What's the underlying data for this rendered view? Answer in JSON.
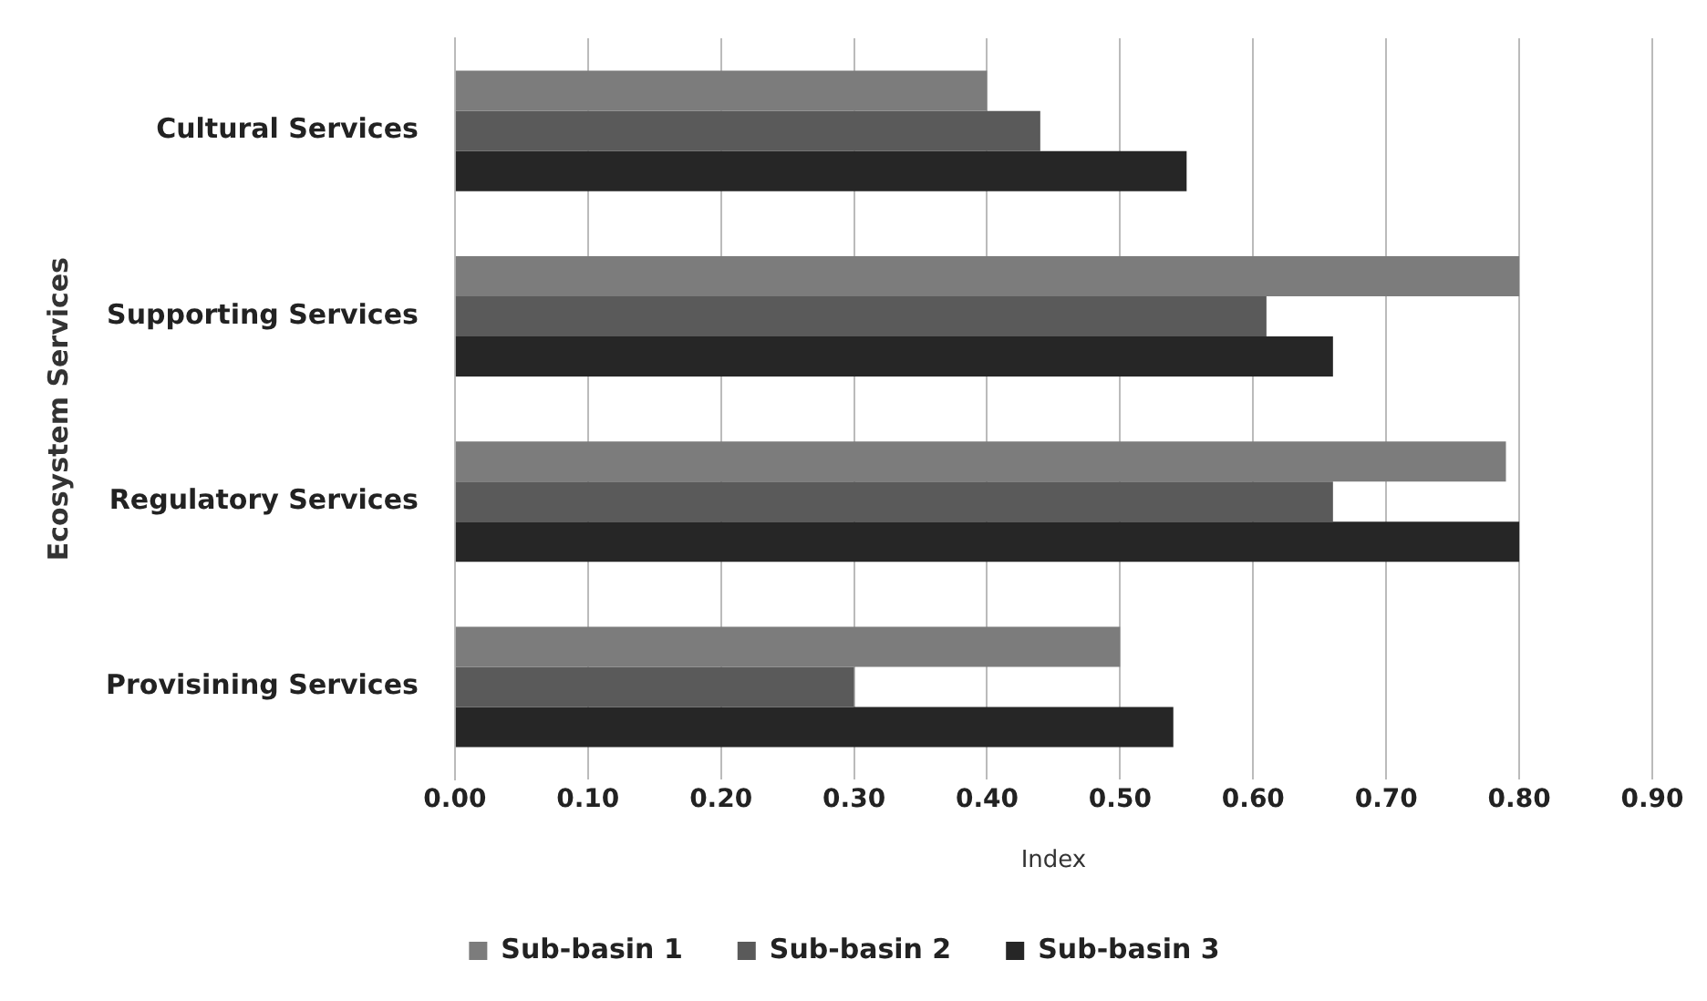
{
  "chart_data": {
    "type": "bar",
    "orientation": "horizontal",
    "xlabel": "Index",
    "ylabel": "Ecosystem Services",
    "categories": [
      "Cultural Services",
      "Supporting Services",
      "Regulatory Services",
      "Provisining Services"
    ],
    "series": [
      {
        "name": "Sub-basin 1",
        "color": "#7c7c7c",
        "values": [
          0.4,
          0.8,
          0.79,
          0.5
        ]
      },
      {
        "name": "Sub-basin 2",
        "color": "#5a5a5a",
        "values": [
          0.44,
          0.61,
          0.66,
          0.3
        ]
      },
      {
        "name": "Sub-basin 3",
        "color": "#262626",
        "values": [
          0.55,
          0.66,
          0.8,
          0.54
        ]
      }
    ],
    "xlim": [
      0,
      0.9
    ],
    "xticks": [
      {
        "value": 0,
        "label": "0.00"
      },
      {
        "value": 0.1,
        "label": "0.10"
      },
      {
        "value": 0.2,
        "label": "0.20"
      },
      {
        "value": 0.3,
        "label": "0.30"
      },
      {
        "value": 0.4,
        "label": "0.40"
      },
      {
        "value": 0.5,
        "label": "0.50"
      },
      {
        "value": 0.6,
        "label": "0.60"
      },
      {
        "value": 0.7,
        "label": "0.70"
      },
      {
        "value": 0.8,
        "label": "0.80"
      },
      {
        "value": 0.9,
        "label": "0.90"
      }
    ],
    "grid": "x",
    "legend": "bottom"
  }
}
